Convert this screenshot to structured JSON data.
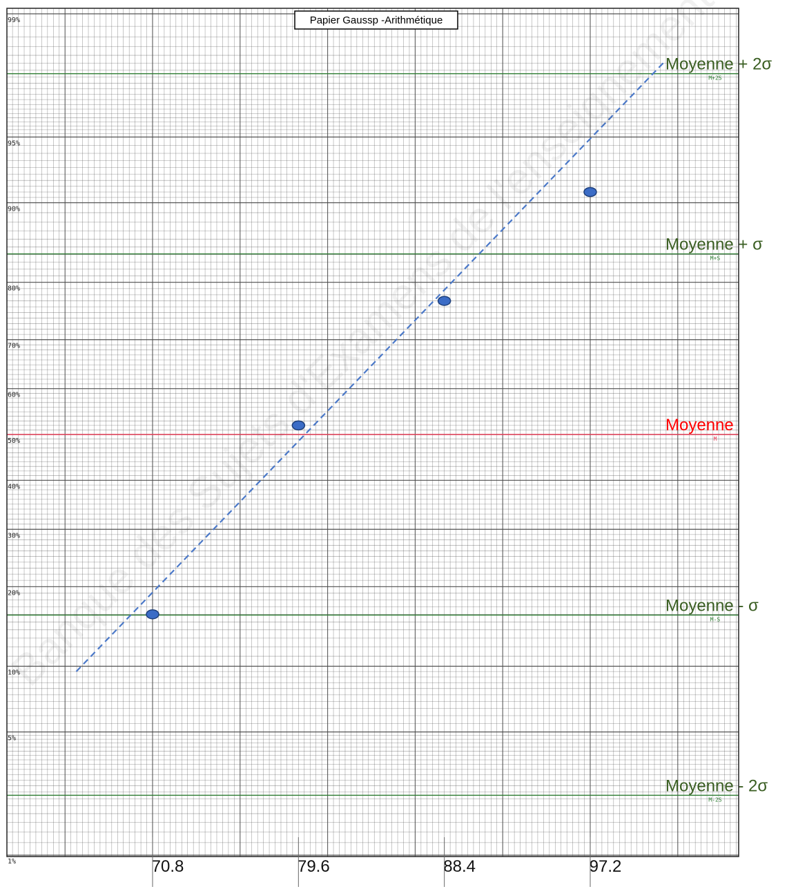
{
  "chart_data": {
    "type": "scatter",
    "title": "Papier Gaussp -Arithmétique",
    "watermark": "Banque des Sujets d'Examens de l'enseignement",
    "x_ticks": [
      "70.8",
      "79.6",
      "88.4",
      "97.2"
    ],
    "x_tick_values": [
      70.8,
      79.6,
      88.4,
      97.2
    ],
    "xlim": [
      63.5,
      105.5
    ],
    "y_ticks": [
      "99%",
      "95%",
      "90%",
      "80%",
      "70%",
      "60%",
      "50%",
      "40%",
      "30%",
      "20%",
      "10%",
      "5%",
      "1%"
    ],
    "y_tick_values": [
      99,
      95,
      90,
      80,
      70,
      60,
      50,
      40,
      30,
      20,
      10,
      5,
      1
    ],
    "y_scale": "probability",
    "grid": true,
    "points": [
      {
        "x": 70.8,
        "y": 16
      },
      {
        "x": 79.6,
        "y": 52
      },
      {
        "x": 88.4,
        "y": 77
      },
      {
        "x": 97.2,
        "y": 91
      }
    ],
    "fit_line": {
      "style": "dashed",
      "x": [
        66.2,
        101.6
      ],
      "y": [
        9.5,
        98
      ]
    },
    "reference_lines": [
      {
        "label": "Moyenne + 2σ",
        "code": "M+2S",
        "y": 97.7,
        "color": "#2e7d32",
        "label_color": "#3a5e22"
      },
      {
        "label": "Moyenne + σ",
        "code": "M+S",
        "y": 84.1,
        "color": "#2e7d32",
        "label_color": "#3a5e22"
      },
      {
        "label": "Moyenne",
        "code": "M",
        "y": 50,
        "color": "#e8405a",
        "label_color": "#ff0000"
      },
      {
        "label": "Moyenne - σ",
        "code": "M-S",
        "y": 15.9,
        "color": "#2e7d32",
        "label_color": "#3a5e22"
      },
      {
        "label": "Moyenne - 2σ",
        "code": "M-2S",
        "y": 2.3,
        "color": "#2e7d32",
        "label_color": "#3a5e22"
      }
    ],
    "colors": {
      "point_fill": "#3b6cc6",
      "point_stroke": "#1e3f7a",
      "fit_line": "#4a78c8",
      "grid": "#4a4a4a"
    }
  }
}
